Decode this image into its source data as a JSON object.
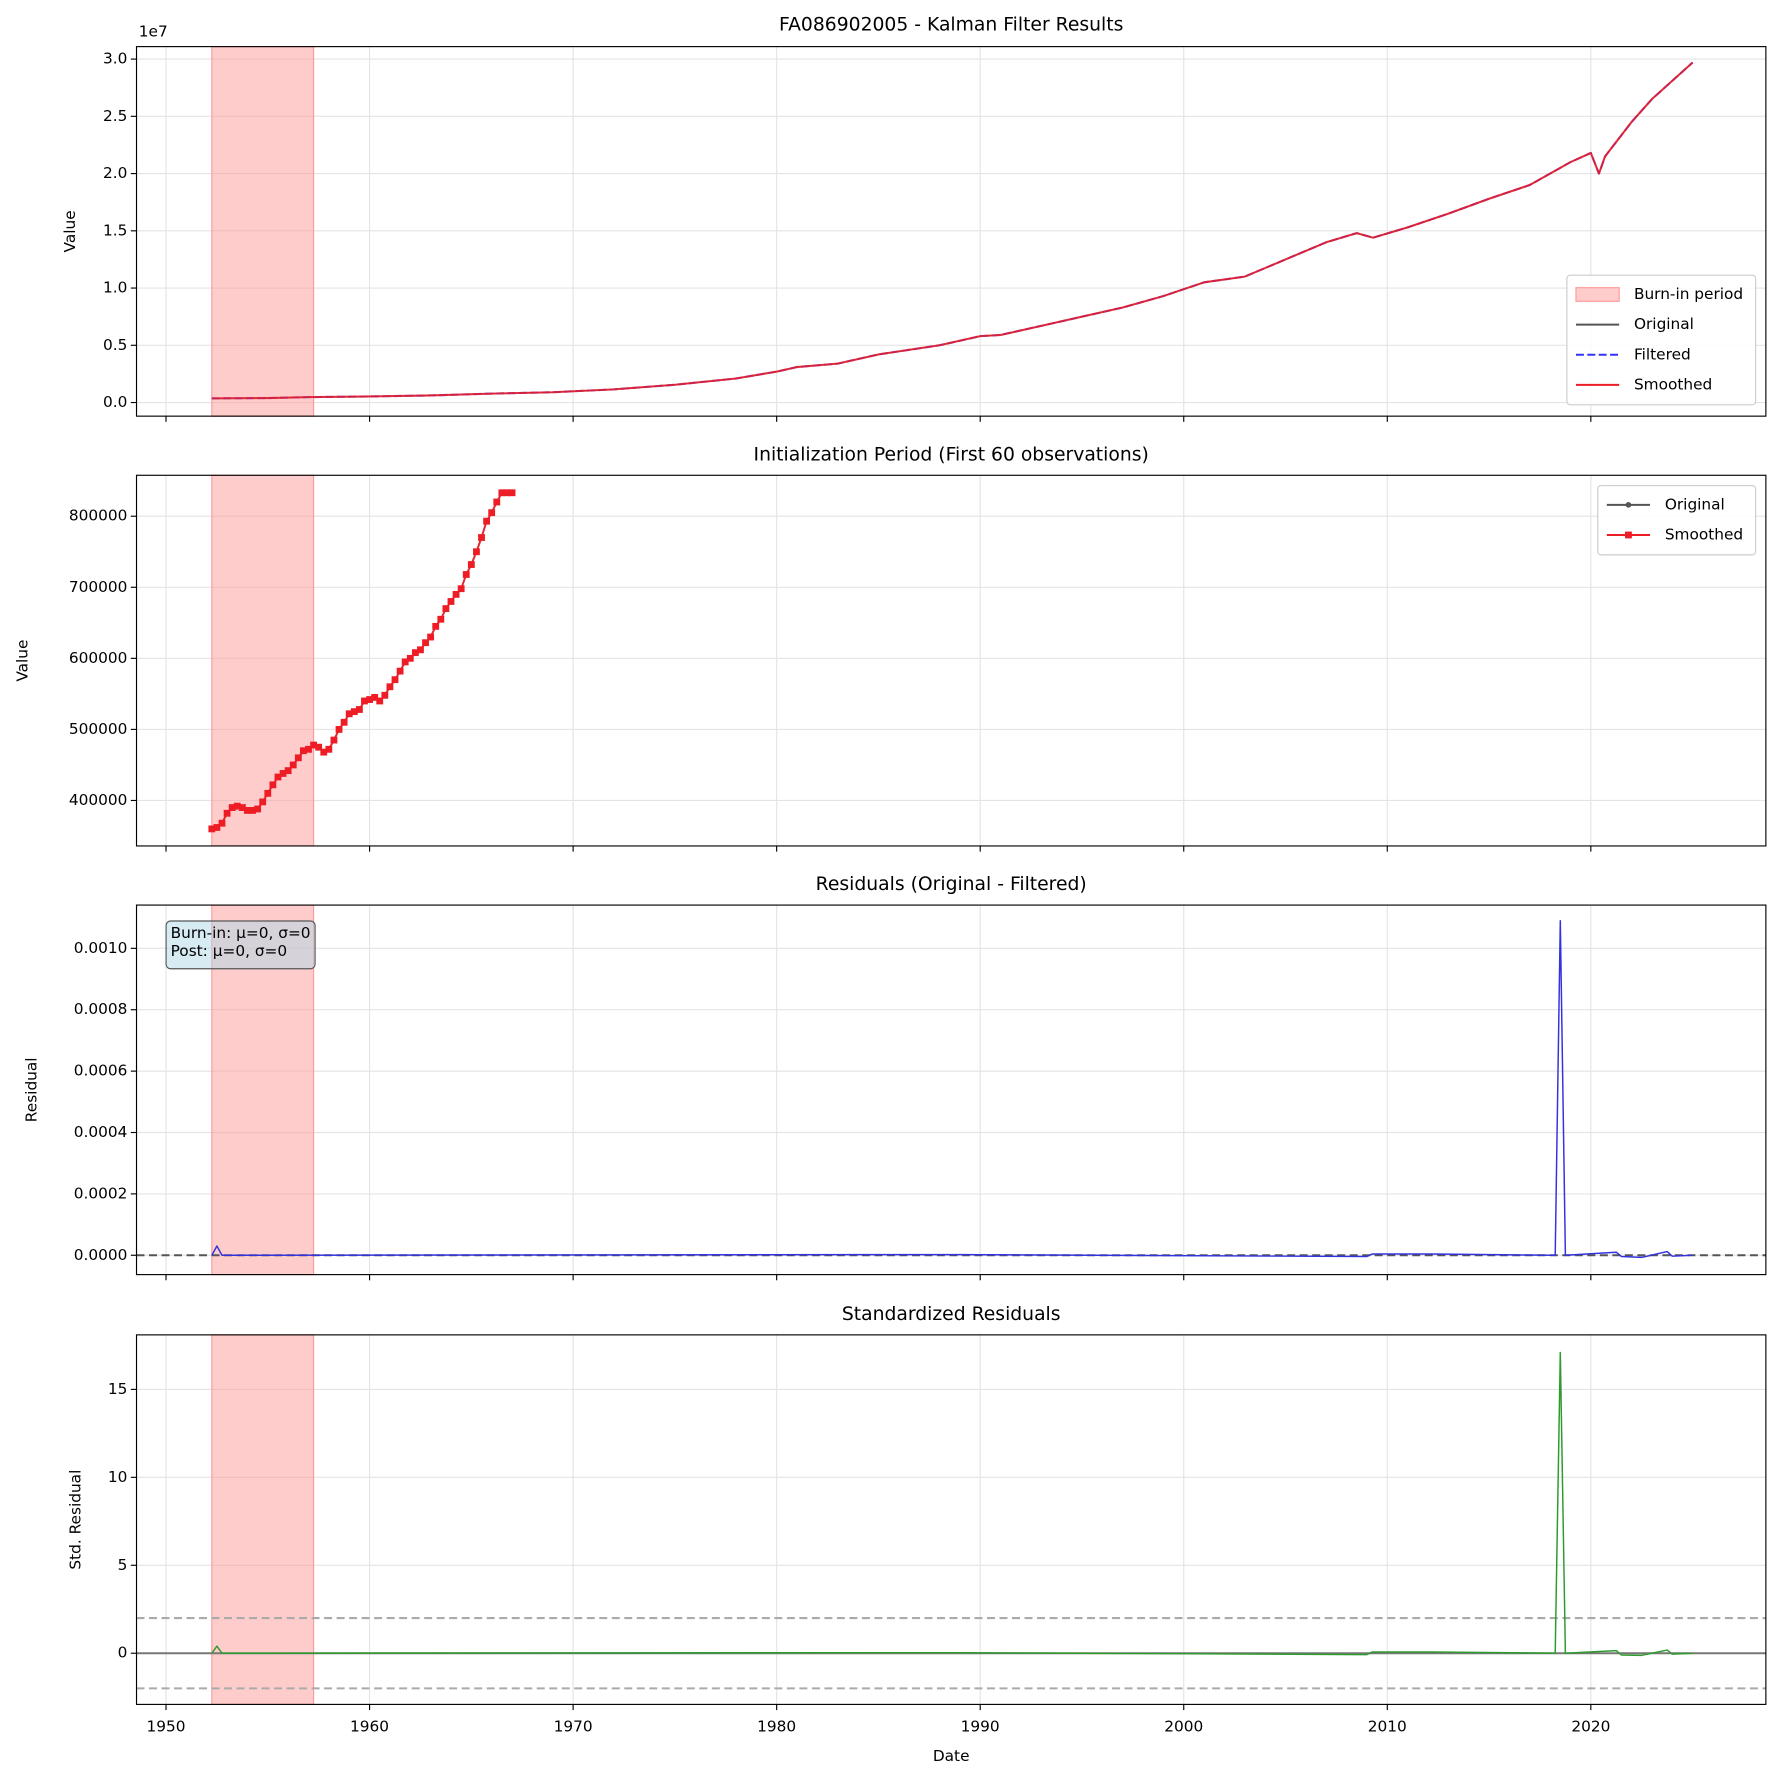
{
  "chart_data": [
    {
      "type": "line",
      "title": "FA086902005 - Kalman Filter Results",
      "ylabel": "Value",
      "offset_label": "1e7",
      "burn_in": [
        1952.25,
        1957.25
      ],
      "burn_in_label": "Burn-in period",
      "burn_in_color": "#ff9999",
      "x": [
        1952.25,
        1955,
        1957,
        1960,
        1963,
        1966,
        1969,
        1972,
        1975,
        1978,
        1980,
        1981,
        1983,
        1985,
        1988,
        1990,
        1991,
        1993,
        1995,
        1997,
        1999,
        2000,
        2001,
        2003,
        2005,
        2007,
        2008.5,
        2009.3,
        2011,
        2013,
        2015,
        2017,
        2019,
        2020,
        2020.4,
        2020.7,
        2022,
        2023,
        2025
      ],
      "series": [
        {
          "name": "Original",
          "color": "#555555",
          "values": [
            360000,
            390000,
            470000,
            530000,
            620000,
            780000,
            900000,
            1150000,
            1550000,
            2100000,
            2700000,
            3100000,
            3400000,
            4200000,
            5000000,
            5800000,
            5900000,
            6700000,
            7500000,
            8300000,
            9300000,
            9900000,
            10500000,
            11000000,
            12500000,
            14000000,
            14800000,
            14400000,
            15300000,
            16500000,
            17800000,
            19000000,
            21000000,
            21800000,
            20000000,
            21500000,
            24500000,
            26500000,
            29700000
          ]
        },
        {
          "name": "Filtered",
          "color": "#3333ff",
          "dashed": true,
          "values": [
            360000,
            390000,
            470000,
            530000,
            620000,
            780000,
            900000,
            1150000,
            1550000,
            2100000,
            2700000,
            3100000,
            3400000,
            4200000,
            5000000,
            5800000,
            5900000,
            6700000,
            7500000,
            8300000,
            9300000,
            9900000,
            10500000,
            11000000,
            12500000,
            14000000,
            14800000,
            14400000,
            15300000,
            16500000,
            17800000,
            19000000,
            21000000,
            21800000,
            20000000,
            21500000,
            24500000,
            26500000,
            29700000
          ]
        },
        {
          "name": "Smoothed",
          "color": "#ee1c25",
          "values": [
            360000,
            390000,
            470000,
            530000,
            620000,
            780000,
            900000,
            1150000,
            1550000,
            2100000,
            2700000,
            3100000,
            3400000,
            4200000,
            5000000,
            5800000,
            5900000,
            6700000,
            7500000,
            8300000,
            9300000,
            9900000,
            10500000,
            11000000,
            12500000,
            14000000,
            14800000,
            14400000,
            15300000,
            16500000,
            17800000,
            19000000,
            21000000,
            21800000,
            20000000,
            21500000,
            24500000,
            26500000,
            29700000
          ]
        }
      ],
      "xlim": [
        1948.55,
        2028.6
      ],
      "xticks": [
        1950,
        1960,
        1970,
        1980,
        1990,
        2000,
        2010,
        2020
      ],
      "ylim": [
        -1190000,
        31090000
      ],
      "yticks": [
        {
          "value": 0,
          "label": "0.0"
        },
        {
          "value": 5000000,
          "label": "0.5"
        },
        {
          "value": 10000000,
          "label": "1.0"
        },
        {
          "value": 15000000,
          "label": "1.5"
        },
        {
          "value": 20000000,
          "label": "2.0"
        },
        {
          "value": 25000000,
          "label": "2.5"
        },
        {
          "value": 30000000,
          "label": "3.0"
        }
      ],
      "grid": true,
      "legend": "lower right"
    },
    {
      "type": "line",
      "title": "Initialization Period (First 60 observations)",
      "ylabel": "Value",
      "burn_in": [
        1952.25,
        1957.25
      ],
      "burn_in_color": "#ff9999",
      "x": [
        1952.25,
        1952.5,
        1952.75,
        1953,
        1953.25,
        1953.5,
        1953.75,
        1954,
        1954.25,
        1954.5,
        1954.75,
        1955,
        1955.25,
        1955.5,
        1955.75,
        1956,
        1956.25,
        1956.5,
        1956.75,
        1957,
        1957.25,
        1957.5,
        1957.75,
        1958,
        1958.25,
        1958.5,
        1958.75,
        1959,
        1959.25,
        1959.5,
        1959.75,
        1960,
        1960.25,
        1960.5,
        1960.75,
        1961,
        1961.25,
        1961.5,
        1961.75,
        1962,
        1962.25,
        1962.5,
        1962.75,
        1963,
        1963.25,
        1963.5,
        1963.75,
        1964,
        1964.25,
        1964.5,
        1964.75,
        1965,
        1965.25,
        1965.5,
        1965.75,
        1966,
        1966.25,
        1966.5,
        1966.75,
        1967
      ],
      "series": [
        {
          "name": "Original",
          "color": "#555555",
          "marker": "circle",
          "values": [
            360000,
            362000,
            368000,
            382000,
            390000,
            392000,
            390000,
            386000,
            386000,
            388000,
            398000,
            410000,
            422000,
            433000,
            438000,
            442000,
            450000,
            460000,
            470000,
            472000,
            478000,
            475000,
            468000,
            472000,
            485000,
            500000,
            510000,
            522000,
            525000,
            528000,
            540000,
            542000,
            545000,
            540000,
            548000,
            560000,
            570000,
            582000,
            595000,
            600000,
            608000,
            612000,
            622000,
            630000,
            645000,
            655000,
            670000,
            680000,
            690000,
            698000,
            718000,
            732000,
            750000,
            770000,
            793000,
            805000,
            820000,
            833000,
            833000,
            833000
          ]
        },
        {
          "name": "Smoothed",
          "color": "#ee1c25",
          "marker": "square",
          "values": [
            360000,
            362000,
            368000,
            382000,
            390000,
            392000,
            390000,
            386000,
            386000,
            388000,
            398000,
            410000,
            422000,
            433000,
            438000,
            442000,
            450000,
            460000,
            470000,
            472000,
            478000,
            475000,
            468000,
            472000,
            485000,
            500000,
            510000,
            522000,
            525000,
            528000,
            540000,
            542000,
            545000,
            540000,
            548000,
            560000,
            570000,
            582000,
            595000,
            600000,
            608000,
            612000,
            622000,
            630000,
            645000,
            655000,
            670000,
            680000,
            690000,
            698000,
            718000,
            732000,
            750000,
            770000,
            793000,
            805000,
            820000,
            833000,
            833000,
            833000
          ]
        }
      ],
      "xlim": [
        1948.55,
        2028.6
      ],
      "xticks": [
        1950,
        1960,
        1970,
        1980,
        1990,
        2000,
        2010,
        2020
      ],
      "ylim": [
        336000,
        857600
      ],
      "yticks": [
        400000,
        500000,
        600000,
        700000,
        800000
      ],
      "grid": true,
      "legend": "upper right"
    },
    {
      "type": "line",
      "title": "Residuals (Original - Filtered)",
      "ylabel": "Residual",
      "burn_in": [
        1952.25,
        1957.25
      ],
      "burn_in_color": "#ff9999",
      "annotation": [
        "Burn-in: μ=0, σ=0",
        "Post: μ=0, σ=0"
      ],
      "x": [
        1952.25,
        1952.5,
        1952.75,
        1984.25,
        1989,
        2009,
        2009.25,
        2012.25,
        2018.25,
        2018.5,
        2018.75,
        2021.25,
        2021.5,
        2022.5,
        2023.75,
        2024,
        2025
      ],
      "values": [
        0,
        3e-05,
        0,
        2e-06,
        2e-06,
        -4e-06,
        4e-06,
        4e-06,
        0,
        0.00109,
        0,
        1e-05,
        -4e-06,
        -7e-06,
        1.2e-05,
        -3e-06,
        0
      ],
      "color": "#3333dd",
      "hlines": [
        {
          "value": 0,
          "color": "#555555",
          "dashed": true
        }
      ],
      "xlim": [
        1948.55,
        2028.6
      ],
      "xticks": [
        1950,
        1960,
        1970,
        1980,
        1990,
        2000,
        2010,
        2020
      ],
      "ylim": [
        -6.3e-05,
        0.001141
      ],
      "yticks": [
        {
          "value": 0,
          "label": "0.0000"
        },
        {
          "value": 0.0002,
          "label": "0.0002"
        },
        {
          "value": 0.0004,
          "label": "0.0004"
        },
        {
          "value": 0.0006,
          "label": "0.0006"
        },
        {
          "value": 0.0008,
          "label": "0.0008"
        },
        {
          "value": 0.001,
          "label": "0.0010"
        }
      ],
      "grid": true
    },
    {
      "type": "line",
      "title": "Standardized Residuals",
      "ylabel": "Std. Residual",
      "xlabel": "Date",
      "burn_in": [
        1952.25,
        1957.25
      ],
      "burn_in_color": "#ff9999",
      "x": [
        1952.25,
        1952.5,
        1952.75,
        1984.25,
        1989,
        2009,
        2009.25,
        2012.25,
        2018.25,
        2018.5,
        2018.75,
        2021.25,
        2021.5,
        2022.5,
        2023.75,
        2024,
        2025
      ],
      "values": [
        0,
        0.4,
        0,
        0.03,
        0.03,
        -0.08,
        0.07,
        0.07,
        0,
        17.1,
        0,
        0.15,
        -0.1,
        -0.12,
        0.18,
        -0.05,
        0
      ],
      "color": "#2e9b2e",
      "hlines": [
        {
          "value": 0,
          "color": "#777777"
        },
        {
          "value": 2,
          "color": "#aaaaaa",
          "dashed": true
        },
        {
          "value": -2,
          "color": "#aaaaaa",
          "dashed": true
        }
      ],
      "xlim": [
        1948.55,
        2028.6
      ],
      "xticks": [
        1950,
        1960,
        1970,
        1980,
        1990,
        2000,
        2010,
        2020
      ],
      "ylim": [
        -2.91,
        18.1
      ],
      "yticks": [
        0,
        5,
        10,
        15
      ],
      "grid": true
    }
  ]
}
